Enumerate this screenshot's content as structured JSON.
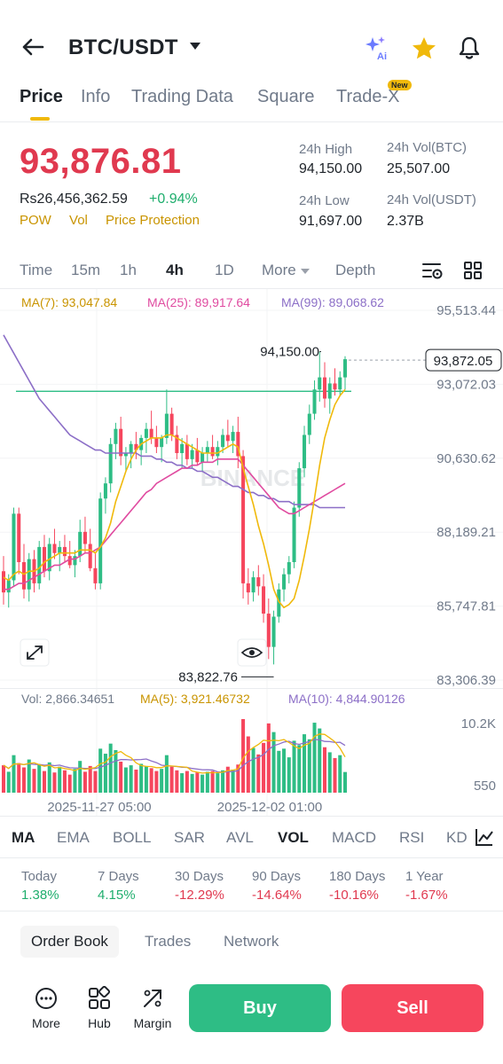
{
  "header": {
    "pair": "BTC/USDT",
    "icons": [
      "back-arrow-icon",
      "ai-sparkle-icon",
      "star-icon",
      "bell-icon"
    ]
  },
  "tabs": [
    {
      "label": "Price",
      "active": true
    },
    {
      "label": "Info"
    },
    {
      "label": "Trading Data"
    },
    {
      "label": "Square"
    },
    {
      "label": "Trade-X",
      "badge": "New"
    }
  ],
  "price": {
    "last": "93,876.81",
    "fiat": "Rs26,456,362.59",
    "change": "+0.94%",
    "tags": [
      "POW",
      "Vol",
      "Price Protection"
    ]
  },
  "stats": {
    "high_label": "24h High",
    "high": "94,150.00",
    "low_label": "24h Low",
    "low": "91,697.00",
    "vol_btc_label": "24h Vol(BTC)",
    "vol_btc": "25,507.00",
    "vol_usdt_label": "24h Vol(USDT)",
    "vol_usdt": "2.37B"
  },
  "intervals": {
    "items": [
      "Time",
      "15m",
      "1h",
      "4h",
      "1D",
      "More",
      "Depth"
    ],
    "active": "4h"
  },
  "ma_legend": {
    "ma7": "MA(7): 93,047.84",
    "ma25": "MA(25): 89,917.64",
    "ma99": "MA(99): 89,068.62"
  },
  "volume_legend": {
    "vol": "Vol: 2,866.34651",
    "ma5": "MA(5): 3,921.46732",
    "ma10": "MA(10): 4,844.90126"
  },
  "colors": {
    "up": "#2ebd85",
    "down": "#f6465d",
    "ma7": "#f0b90b",
    "ma25": "#e04ba0",
    "ma99": "#8c6fc7",
    "accent": "#f0b90b"
  },
  "chart_data": {
    "type": "candlestick",
    "watermark": "BINANCE",
    "y_ticks": [
      "95,513.44",
      "93,072.03",
      "90,630.62",
      "88,189.21",
      "85,747.81",
      "83,306.39"
    ],
    "ylim": [
      83306.39,
      95513.44
    ],
    "x_ticks": [
      "2025-11-27 05:00",
      "2025-12-02 01:00"
    ],
    "current_price_label": "93,872.05",
    "current_price": 93872.05,
    "high_marker": "94,150.00",
    "high_value": 94150.0,
    "low_marker": "83,822.76",
    "low_value": 83822.76,
    "horizontal_line": 92840,
    "volume_ticks": [
      "10.2K",
      "550"
    ],
    "volume_max": 10200,
    "candles": [
      [
        86900,
        87400,
        85800,
        86200
      ],
      [
        86200,
        86800,
        85700,
        86600
      ],
      [
        86600,
        89000,
        86400,
        88800
      ],
      [
        88800,
        89000,
        86800,
        87200
      ],
      [
        87200,
        87800,
        86000,
        86300
      ],
      [
        86300,
        87500,
        85900,
        87300
      ],
      [
        87300,
        87600,
        86200,
        86500
      ],
      [
        86500,
        87900,
        86300,
        87700
      ],
      [
        87700,
        88100,
        86700,
        86900
      ],
      [
        86900,
        88000,
        86600,
        87800
      ],
      [
        87800,
        88300,
        87300,
        87500
      ],
      [
        87500,
        87900,
        86900,
        87700
      ],
      [
        87700,
        88100,
        87200,
        87400
      ],
      [
        87400,
        87900,
        87000,
        87100
      ],
      [
        87100,
        87600,
        86700,
        87400
      ],
      [
        87400,
        88600,
        87200,
        88200
      ],
      [
        88200,
        88700,
        87500,
        87800
      ],
      [
        87800,
        88300,
        86900,
        87000
      ],
      [
        87000,
        87500,
        86300,
        86500
      ],
      [
        86500,
        89500,
        86300,
        89300
      ],
      [
        89300,
        90000,
        88800,
        89800
      ],
      [
        89800,
        91300,
        89500,
        91100
      ],
      [
        91100,
        91800,
        90600,
        91600
      ],
      [
        91600,
        92000,
        90400,
        90700
      ],
      [
        90700,
        91000,
        90200,
        90800
      ],
      [
        90800,
        91200,
        90300,
        91100
      ],
      [
        91100,
        91500,
        90600,
        90900
      ],
      [
        90900,
        91400,
        90400,
        91300
      ],
      [
        91300,
        91800,
        90800,
        91600
      ],
      [
        91600,
        92200,
        91100,
        91300
      ],
      [
        91300,
        91700,
        90800,
        91000
      ],
      [
        91000,
        91400,
        90500,
        91300
      ],
      [
        91300,
        92900,
        91100,
        92100
      ],
      [
        92100,
        92300,
        91200,
        91400
      ],
      [
        91400,
        91700,
        90600,
        90800
      ],
      [
        90800,
        91300,
        90300,
        91100
      ],
      [
        91100,
        91400,
        90400,
        90600
      ],
      [
        90600,
        91100,
        90300,
        90900
      ],
      [
        90900,
        91300,
        90400,
        90500
      ],
      [
        90500,
        91000,
        90200,
        90800
      ],
      [
        90800,
        91200,
        90500,
        91000
      ],
      [
        91000,
        91400,
        90600,
        90700
      ],
      [
        90700,
        91200,
        90400,
        91000
      ],
      [
        91000,
        91600,
        90800,
        91400
      ],
      [
        91400,
        91900,
        91000,
        91200
      ],
      [
        91200,
        91700,
        90800,
        91500
      ],
      [
        91500,
        92000,
        90300,
        90700
      ],
      [
        90700,
        90900,
        86000,
        86500
      ],
      [
        86500,
        87000,
        85800,
        86200
      ],
      [
        86200,
        86900,
        85900,
        86700
      ],
      [
        86700,
        87100,
        86100,
        86400
      ],
      [
        86400,
        86800,
        85200,
        85500
      ],
      [
        85500,
        86000,
        84000,
        84400
      ],
      [
        84400,
        85600,
        83822.76,
        85400
      ],
      [
        85400,
        86500,
        85200,
        86300
      ],
      [
        86300,
        87000,
        85900,
        86800
      ],
      [
        86800,
        87400,
        86500,
        87200
      ],
      [
        87200,
        89200,
        87000,
        89000
      ],
      [
        89000,
        90500,
        88700,
        90300
      ],
      [
        90300,
        91700,
        90000,
        91400
      ],
      [
        91400,
        92400,
        91100,
        92100
      ],
      [
        92100,
        93200,
        91900,
        92900
      ],
      [
        92900,
        94150,
        92500,
        93300
      ],
      [
        93300,
        93800,
        92300,
        92600
      ],
      [
        92600,
        93300,
        92100,
        93100
      ],
      [
        93100,
        93600,
        92700,
        92900
      ],
      [
        92900,
        93500,
        92700,
        93300
      ],
      [
        93300,
        94000,
        92900,
        93900
      ]
    ],
    "ma7": [
      86700,
      86600,
      86800,
      86900,
      86800,
      86900,
      86900,
      87000,
      87200,
      87300,
      87400,
      87500,
      87500,
      87500,
      87500,
      87600,
      87600,
      87600,
      87500,
      87700,
      88000,
      88500,
      89200,
      89700,
      90200,
      90600,
      90900,
      91100,
      91200,
      91300,
      91300,
      91300,
      91400,
      91400,
      91300,
      91200,
      91100,
      91000,
      90900,
      90800,
      90800,
      90800,
      90800,
      90900,
      91000,
      91100,
      91000,
      90300,
      89700,
      89100,
      88400,
      87800,
      87100,
      86300,
      85900,
      85700,
      85800,
      86000,
      86600,
      87400,
      88300,
      89300,
      90400,
      91300,
      91900,
      92400,
      92700,
      92900
    ],
    "ma25": [
      86300,
      86300,
      86400,
      86500,
      86500,
      86600,
      86700,
      86800,
      86900,
      87000,
      87100,
      87100,
      87200,
      87300,
      87300,
      87400,
      87500,
      87500,
      87600,
      87700,
      87900,
      88100,
      88300,
      88500,
      88700,
      88900,
      89100,
      89300,
      89500,
      89600,
      89800,
      89900,
      90000,
      90100,
      90200,
      90300,
      90300,
      90400,
      90400,
      90500,
      90500,
      90500,
      90600,
      90600,
      90600,
      90600,
      90600,
      90400,
      90200,
      90000,
      89800,
      89600,
      89400,
      89200,
      89000,
      88900,
      88800,
      88800,
      88900,
      89000,
      89100,
      89200,
      89300,
      89400,
      89500,
      89600,
      89700,
      89800
    ],
    "ma99": [
      94700,
      94400,
      94100,
      93800,
      93500,
      93200,
      92900,
      92600,
      92400,
      92200,
      92000,
      91800,
      91600,
      91400,
      91300,
      91200,
      91100,
      91000,
      90900,
      90900,
      90800,
      90800,
      90800,
      90800,
      90800,
      90800,
      90800,
      90700,
      90700,
      90700,
      90600,
      90600,
      90500,
      90500,
      90400,
      90400,
      90300,
      90300,
      90200,
      90200,
      90100,
      90000,
      90000,
      89900,
      89800,
      89700,
      89700,
      89600,
      89500,
      89500,
      89400,
      89400,
      89300,
      89300,
      89200,
      89200,
      89200,
      89100,
      89100,
      89100,
      89100,
      89100,
      89000,
      89000,
      89000,
      89000,
      89000,
      89000
    ],
    "volume": [
      3800,
      2900,
      5200,
      4100,
      3500,
      4600,
      3300,
      3900,
      3000,
      4200,
      2800,
      3600,
      3100,
      2500,
      3300,
      4400,
      2900,
      3700,
      3000,
      6100,
      5400,
      6800,
      5900,
      4300,
      3500,
      3800,
      3200,
      4000,
      3700,
      3400,
      3000,
      3300,
      5200,
      3600,
      3100,
      2700,
      3000,
      2600,
      2800,
      2500,
      2900,
      3000,
      2700,
      3100,
      3600,
      3200,
      3900,
      10200,
      7800,
      6200,
      5300,
      6900,
      9600,
      8400,
      5800,
      6100,
      4900,
      7200,
      6600,
      8100,
      7400,
      9700,
      8900,
      6300,
      5600,
      4800,
      5200,
      2866
    ]
  },
  "indicators": {
    "items": [
      "MA",
      "EMA",
      "BOLL",
      "SAR",
      "AVL",
      "VOL",
      "MACD",
      "RSI",
      "KD"
    ],
    "active": [
      "MA",
      "VOL"
    ]
  },
  "performance": [
    {
      "label": "Today",
      "value": "1.38%",
      "dir": "up"
    },
    {
      "label": "7 Days",
      "value": "4.15%",
      "dir": "up"
    },
    {
      "label": "30 Days",
      "value": "-12.29%",
      "dir": "down"
    },
    {
      "label": "90 Days",
      "value": "-14.64%",
      "dir": "down"
    },
    {
      "label": "180 Days",
      "value": "-10.16%",
      "dir": "down"
    },
    {
      "label": "1 Year",
      "value": "-1.67%",
      "dir": "down"
    }
  ],
  "lower_tabs": [
    {
      "label": "Order Book",
      "active": true
    },
    {
      "label": "Trades"
    },
    {
      "label": "Network"
    }
  ],
  "bottom_bar": {
    "more": "More",
    "hub": "Hub",
    "margin": "Margin",
    "buy": "Buy",
    "sell": "Sell"
  }
}
